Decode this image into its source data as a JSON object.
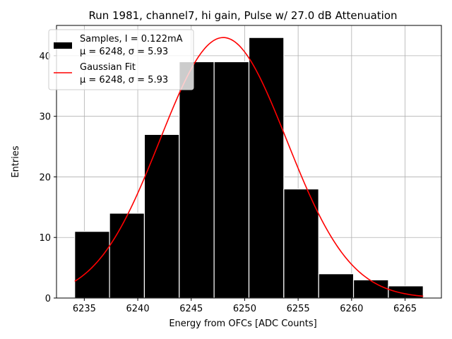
{
  "chart_data": {
    "type": "bar",
    "title": "Run 1981, channel7, hi gain, Pulse w/ 27.0 dB Attenuation",
    "xlabel": "Energy from OFCs [ADC Counts]",
    "ylabel": "Entries",
    "xlim": [
      6232.4,
      6268.4
    ],
    "ylim": [
      0,
      45
    ],
    "xticks": [
      6235,
      6240,
      6245,
      6250,
      6255,
      6260,
      6265
    ],
    "yticks": [
      0,
      10,
      20,
      30,
      40
    ],
    "grid": true,
    "legend_position": "top-left",
    "histogram": {
      "name": "Samples, I = 0.122mA",
      "stats": "μ = 6248, σ = 5.93",
      "color": "#000000",
      "bin_edges": [
        6234.1,
        6237.36,
        6240.62,
        6243.88,
        6247.14,
        6250.4,
        6253.66,
        6256.92,
        6260.18,
        6263.44,
        6266.7
      ],
      "counts": [
        11,
        14,
        27,
        39,
        39,
        43,
        18,
        4,
        3,
        2
      ]
    },
    "fit": {
      "name": "Gaussian Fit",
      "stats": "μ = 6248, σ = 5.93",
      "color": "#ff0000",
      "mu": 6248,
      "sigma": 5.93,
      "amplitude": 43,
      "x_range": [
        6234.1,
        6266.7
      ]
    }
  }
}
